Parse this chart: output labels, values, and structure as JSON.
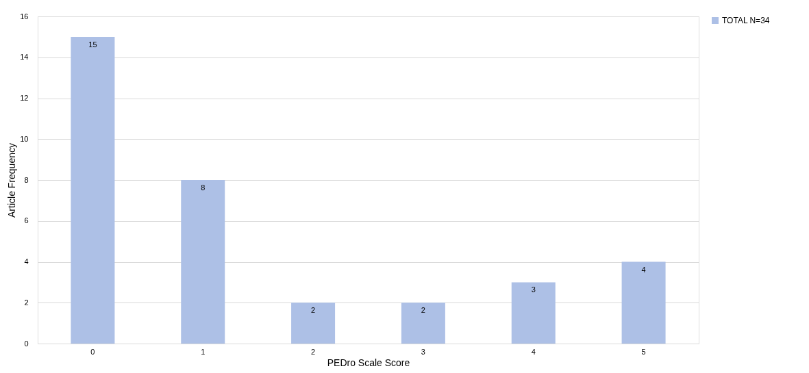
{
  "chart_data": {
    "type": "bar",
    "xlabel": "PEDro Scale Score",
    "ylabel": "Article Frequency",
    "categories": [
      "0",
      "1",
      "2",
      "3",
      "4",
      "5"
    ],
    "series": [
      {
        "name": "TOTAL N=34",
        "color": "#adc0e6",
        "values": [
          15,
          8,
          2,
          2,
          3,
          4
        ]
      }
    ],
    "ylim": [
      0,
      16
    ],
    "yticks": [
      0,
      2,
      4,
      6,
      8,
      10,
      12,
      14,
      16
    ],
    "grid": "y",
    "legend": "right",
    "data_labels": true
  }
}
